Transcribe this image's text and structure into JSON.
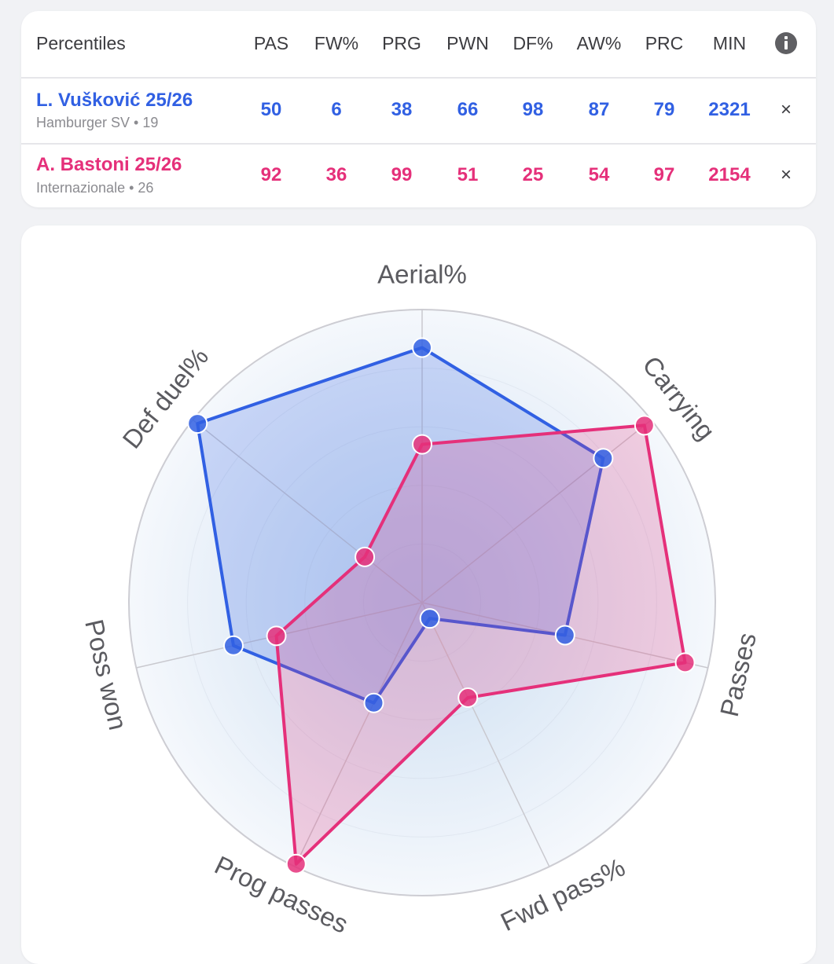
{
  "table": {
    "title": "Percentiles",
    "columns": [
      "PAS",
      "FW%",
      "PRG",
      "PWN",
      "DF%",
      "AW%",
      "PRC",
      "MIN"
    ],
    "rows": [
      {
        "name": "L. Vušković 25/26",
        "sub": "Hamburger SV • 19",
        "values": [
          "50",
          "6",
          "38",
          "66",
          "98",
          "87",
          "79",
          "2321"
        ],
        "color": "#3160e3"
      },
      {
        "name": "A. Bastoni 25/26",
        "sub": "Internazionale • 26",
        "values": [
          "92",
          "36",
          "99",
          "51",
          "25",
          "54",
          "97",
          "2154"
        ],
        "color": "#e5307a"
      }
    ],
    "close_glyph": "×",
    "info_icon": "info-icon"
  },
  "chart_data": {
    "type": "radar",
    "axes": [
      "Aerial%",
      "Carrying",
      "Passes",
      "Fwd pass%",
      "Prog passes",
      "Poss won",
      "Def duel%"
    ],
    "range": [
      0,
      100
    ],
    "series": [
      {
        "values": [
          87,
          79,
          50,
          6,
          38,
          66,
          98
        ],
        "color": "#3160e3"
      },
      {
        "values": [
          54,
          97,
          92,
          36,
          99,
          51,
          25
        ],
        "color": "#e5307a"
      }
    ]
  }
}
